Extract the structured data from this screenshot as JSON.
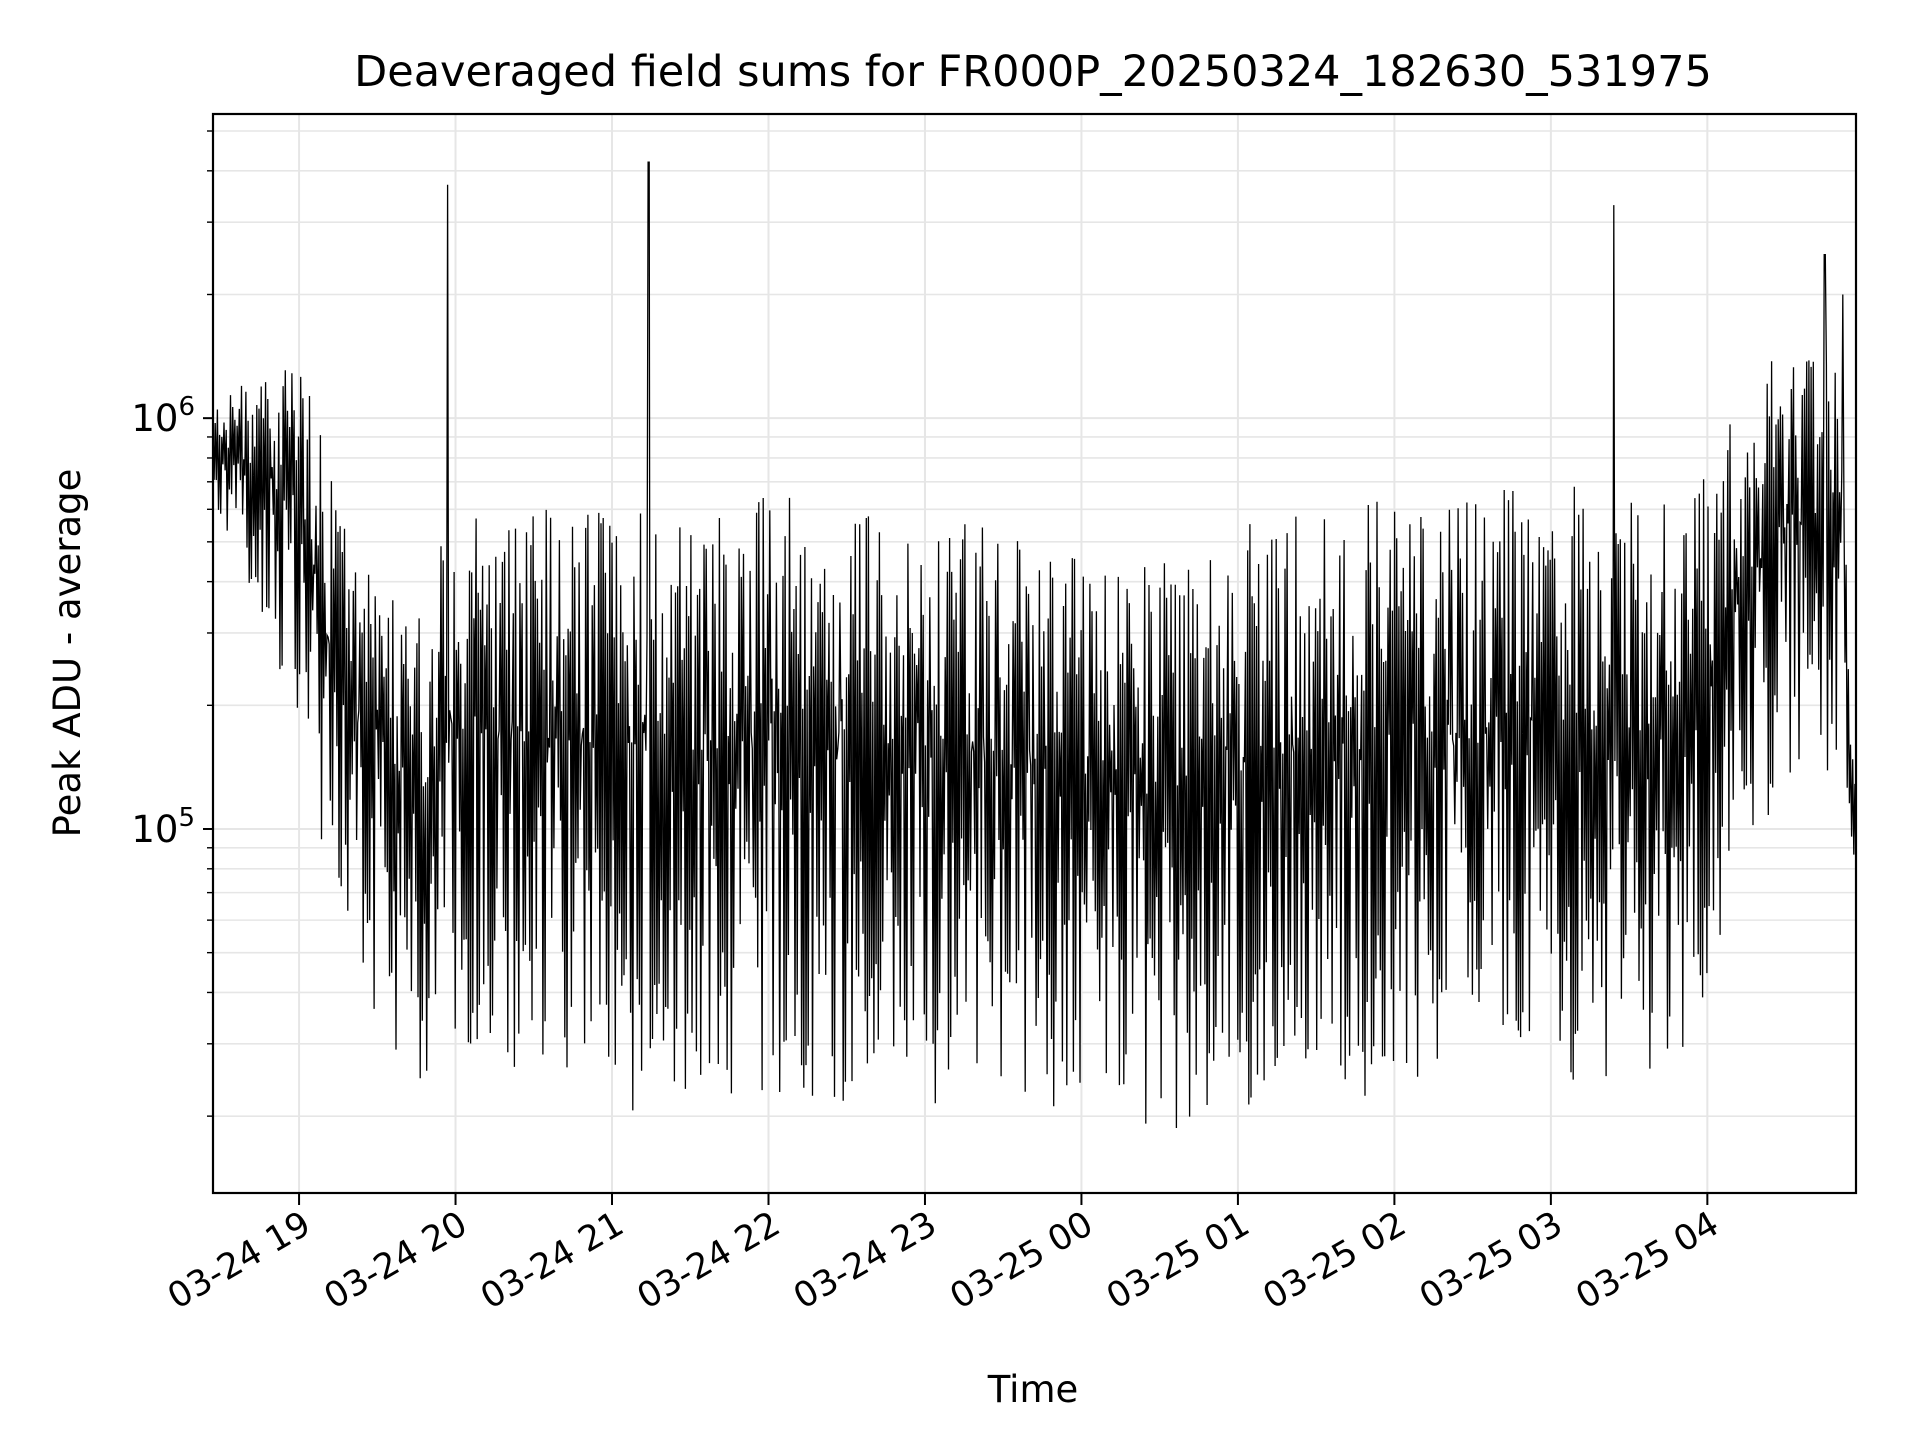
{
  "chart_data": {
    "type": "line",
    "title": "Deaveraged field sums for FR000P_20250324_182630_531975",
    "xlabel": "Time",
    "ylabel": "Peak ADU - average",
    "y_scale": "log",
    "ylim": [
      13000,
      5500000
    ],
    "xlim": [
      "2025-03-24 18:27",
      "2025-03-25 04:57"
    ],
    "grid": true,
    "line_color": "#000000",
    "grid_color": "#e6e6e6",
    "x_ticks": [
      {
        "value": "2025-03-24 19:00",
        "label": "03-24 19"
      },
      {
        "value": "2025-03-24 20:00",
        "label": "03-24 20"
      },
      {
        "value": "2025-03-24 21:00",
        "label": "03-24 21"
      },
      {
        "value": "2025-03-24 22:00",
        "label": "03-24 22"
      },
      {
        "value": "2025-03-24 23:00",
        "label": "03-24 23"
      },
      {
        "value": "2025-03-25 00:00",
        "label": "03-25 00"
      },
      {
        "value": "2025-03-25 01:00",
        "label": "03-25 01"
      },
      {
        "value": "2025-03-25 02:00",
        "label": "03-25 02"
      },
      {
        "value": "2025-03-25 03:00",
        "label": "03-25 03"
      },
      {
        "value": "2025-03-25 04:00",
        "label": "03-25 04"
      }
    ],
    "y_ticks": [
      {
        "value": 100000,
        "label_base": "10",
        "label_exp": "5"
      },
      {
        "value": 1000000,
        "label_base": "10",
        "label_exp": "6"
      }
    ],
    "envelope": [
      {
        "t": "2025-03-24 18:27",
        "lo": 600000,
        "hi": 1100000
      },
      {
        "t": "2025-03-24 18:45",
        "lo": 350000,
        "hi": 1300000
      },
      {
        "t": "2025-03-24 19:00",
        "lo": 150000,
        "hi": 1500000
      },
      {
        "t": "2025-03-24 19:15",
        "lo": 45000,
        "hi": 600000
      },
      {
        "t": "2025-03-24 19:30",
        "lo": 35000,
        "hi": 450000
      },
      {
        "t": "2025-03-24 19:45",
        "lo": 22000,
        "hi": 350000
      },
      {
        "t": "2025-03-24 20:00",
        "lo": 30000,
        "hi": 600000
      },
      {
        "t": "2025-03-24 20:30",
        "lo": 22000,
        "hi": 600000
      },
      {
        "t": "2025-03-24 21:00",
        "lo": 20000,
        "hi": 650000
      },
      {
        "t": "2025-03-24 21:30",
        "lo": 21000,
        "hi": 600000
      },
      {
        "t": "2025-03-24 22:00",
        "lo": 21000,
        "hi": 650000
      },
      {
        "t": "2025-03-24 22:30",
        "lo": 21000,
        "hi": 650000
      },
      {
        "t": "2025-03-24 23:00",
        "lo": 21000,
        "hi": 650000
      },
      {
        "t": "2025-03-24 23:30",
        "lo": 21000,
        "hi": 550000
      },
      {
        "t": "2025-03-25 00:00",
        "lo": 20000,
        "hi": 450000
      },
      {
        "t": "2025-03-25 00:30",
        "lo": 18000,
        "hi": 450000
      },
      {
        "t": "2025-03-25 01:00",
        "lo": 20000,
        "hi": 550000
      },
      {
        "t": "2025-03-25 01:30",
        "lo": 21000,
        "hi": 600000
      },
      {
        "t": "2025-03-25 02:00",
        "lo": 22000,
        "hi": 650000
      },
      {
        "t": "2025-03-25 02:30",
        "lo": 22000,
        "hi": 650000
      },
      {
        "t": "2025-03-25 03:00",
        "lo": 24000,
        "hi": 700000
      },
      {
        "t": "2025-03-25 03:30",
        "lo": 24000,
        "hi": 700000
      },
      {
        "t": "2025-03-25 03:55",
        "lo": 30000,
        "hi": 650000
      },
      {
        "t": "2025-03-25 04:05",
        "lo": 50000,
        "hi": 1000000
      },
      {
        "t": "2025-03-25 04:30",
        "lo": 100000,
        "hi": 1600000
      },
      {
        "t": "2025-03-25 04:50",
        "lo": 150000,
        "hi": 1700000
      },
      {
        "t": "2025-03-25 04:57",
        "lo": 55000,
        "hi": 120000
      }
    ],
    "spikes": [
      {
        "t": "2025-03-24 19:57",
        "y": 3700000
      },
      {
        "t": "2025-03-24 21:14",
        "y": 4200000
      },
      {
        "t": "2025-03-25 03:24",
        "y": 3300000
      },
      {
        "t": "2025-03-25 04:45",
        "y": 2500000
      },
      {
        "t": "2025-03-25 04:52",
        "y": 2000000
      }
    ]
  }
}
